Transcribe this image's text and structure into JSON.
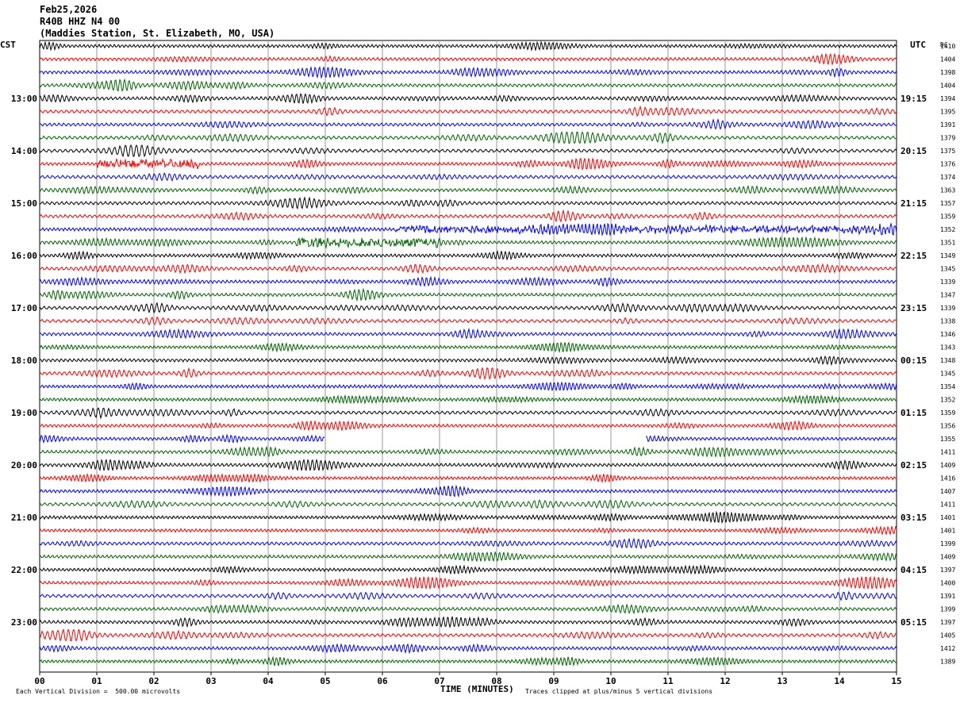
{
  "header": {
    "date": "Feb25,2026",
    "station_code": "R40B HHZ N4 00",
    "station_name": "(Maddies Station, St. Elizabeth, MO, USA)"
  },
  "chart_data": {
    "type": "line",
    "title": "Feb25,2026",
    "xlabel": "TIME (MINUTES)",
    "left_axis_title": "CST",
    "right_axis_title": "UTC",
    "dc_column_title": "DC",
    "xlim": [
      0,
      15
    ],
    "x_tick_labels": [
      "00",
      "01",
      "02",
      "03",
      "04",
      "05",
      "06",
      "07",
      "08",
      "09",
      "10",
      "11",
      "12",
      "13",
      "14",
      "15"
    ],
    "left_hour_labels": [
      "13:00",
      "14:00",
      "15:00",
      "16:00",
      "17:00",
      "18:00",
      "19:00",
      "20:00",
      "21:00",
      "22:00",
      "23:00"
    ],
    "right_hour_labels": [
      "19:15",
      "20:15",
      "21:15",
      "22:15",
      "23:15",
      "00:15",
      "01:15",
      "02:15",
      "03:15",
      "04:15",
      "05:15"
    ],
    "first_labeled_row": 4,
    "rows_per_hour": 4,
    "trace_colors": [
      "#000000",
      "#ff0000",
      "#0000ff",
      "#006400"
    ],
    "grid": true,
    "dc_offsets": [
      "1410",
      "1404",
      "1398",
      "1404",
      "1394",
      "1395",
      "1391",
      "1379",
      "1375",
      "1376",
      "1374",
      "1363",
      "1357",
      "1359",
      "1352",
      "1351",
      "1349",
      "1345",
      "1339",
      "1347",
      "1339",
      "1338",
      "1346",
      "1343",
      "1348",
      "1345",
      "1354",
      "1352",
      "1359",
      "1356",
      "1355",
      "1411",
      "1409",
      "1416",
      "1407",
      "1411",
      "1401",
      "1401",
      "1399",
      "1409",
      "1397",
      "1400",
      "1391",
      "1399",
      "1397",
      "1405",
      "1412",
      "1389"
    ],
    "events": [
      {
        "row": 9,
        "start_min": 1.0,
        "end_min": 2.8,
        "note": "burst"
      },
      {
        "row": 14,
        "start_min": 6.2,
        "end_min": 15.0,
        "note": "noise"
      },
      {
        "row": 15,
        "start_min": 4.5,
        "end_min": 7.0,
        "note": "burst"
      }
    ],
    "gaps": [
      {
        "row": 30,
        "start_min": 5.0,
        "end_min": 10.6
      }
    ],
    "footer_left": "Each Vertical Division =  500.00 microvolts",
    "footer_right": "Traces clipped at plus/minus 5 vertical divisions"
  }
}
